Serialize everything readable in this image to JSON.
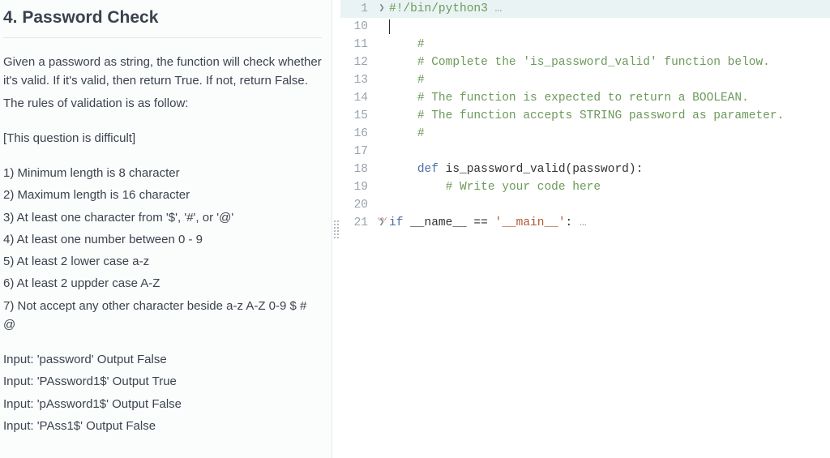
{
  "problem": {
    "title": "4. Password Check",
    "paragraphs": [
      "Given a password as string, the function will check whether it's valid. If it's valid, then return True. If not, return False.",
      "The rules of validation is as follow:"
    ],
    "difficulty_note": "[This question is difficult]",
    "rules": [
      "1) Minimum length is 8 character",
      "2) Maximum length is 16 character",
      "3) At least one character from '$', '#', or '@'",
      "4) At least one number between 0 - 9",
      "5) At least 2 lower case a-z",
      "6) At least 2 uppder case A-Z",
      "7) Not accept any other character beside a-z A-Z 0-9 $ # @"
    ],
    "examples": [
      "Input: 'password' Output False",
      "Input: 'PAssword1$' Output True",
      "Input: 'pAssword1$' Output False",
      "Input: 'PAss1$' Output False"
    ]
  },
  "editor": {
    "lines": [
      {
        "n": 1,
        "kind": "shebang",
        "fold": true,
        "hl": true,
        "segments": [
          {
            "t": "#!/bin/python3",
            "cls": "c-comment"
          },
          {
            "t": " …",
            "cls": "c-ellipsis"
          }
        ]
      },
      {
        "n": 10,
        "kind": "cursor",
        "segments": []
      },
      {
        "n": 11,
        "kind": "comment",
        "segments": [
          {
            "t": "#",
            "cls": "c-comment"
          }
        ]
      },
      {
        "n": 12,
        "kind": "comment",
        "segments": [
          {
            "t": "# Complete the 'is_password_valid' function below.",
            "cls": "c-comment"
          }
        ]
      },
      {
        "n": 13,
        "kind": "comment",
        "segments": [
          {
            "t": "#",
            "cls": "c-comment"
          }
        ]
      },
      {
        "n": 14,
        "kind": "comment",
        "segments": [
          {
            "t": "# The function is expected to return a BOOLEAN.",
            "cls": "c-comment"
          }
        ]
      },
      {
        "n": 15,
        "kind": "comment",
        "segments": [
          {
            "t": "# The function accepts STRING password as parameter.",
            "cls": "c-comment"
          }
        ]
      },
      {
        "n": 16,
        "kind": "comment",
        "segments": [
          {
            "t": "#",
            "cls": "c-comment"
          }
        ]
      },
      {
        "n": 17,
        "kind": "blank",
        "segments": []
      },
      {
        "n": 18,
        "kind": "def",
        "segments": [
          {
            "t": "def ",
            "cls": "c-keyword"
          },
          {
            "t": "is_password_valid(password):",
            "cls": "c-fn"
          }
        ]
      },
      {
        "n": 19,
        "kind": "comment",
        "indent": 1,
        "segments": [
          {
            "t": "# Write your code here",
            "cls": "c-comment"
          }
        ]
      },
      {
        "n": 20,
        "kind": "blank",
        "segments": []
      },
      {
        "n": 21,
        "kind": "main",
        "fold": true,
        "squiggle": true,
        "segments": [
          {
            "t": "if ",
            "cls": "c-keyword"
          },
          {
            "t": "__name__ == ",
            "cls": "c-fn"
          },
          {
            "t": "'__main__'",
            "cls": "c-str"
          },
          {
            "t": ":",
            "cls": "c-fn"
          },
          {
            "t": " …",
            "cls": "c-ellipsis"
          }
        ]
      }
    ]
  },
  "colors": {
    "comment": "#6c9a5b",
    "keyword": "#4a6fa5",
    "string": "#b05b35",
    "gutter": "#9aa3ab",
    "left_bg": "#fbfcfc",
    "hl_bg": "#e9f3f4"
  }
}
